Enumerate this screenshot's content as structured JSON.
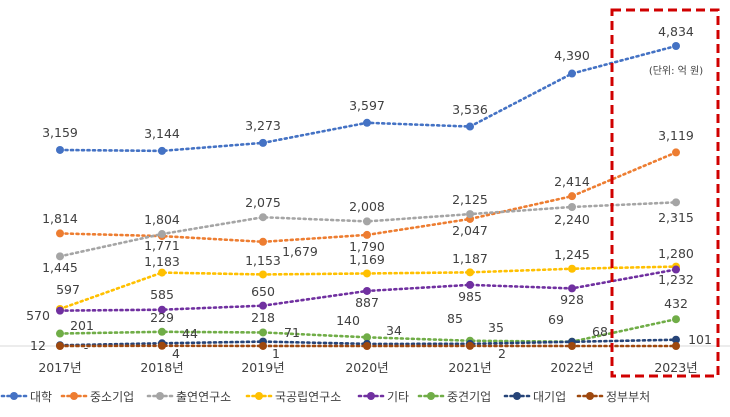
{
  "chart_data": {
    "type": "line",
    "categories": [
      "2017년",
      "2018년",
      "2019년",
      "2020년",
      "2021년",
      "2022년",
      "2023년"
    ],
    "unit_note": "(단위: 억 원)",
    "ylim": [
      0,
      5000
    ],
    "grid": false,
    "legend": "bottom",
    "highlight": "2023년",
    "series": [
      {
        "name": "대학",
        "color": "#4472c4",
        "values": [
          3159,
          3144,
          3273,
          3597,
          3536,
          4390,
          4834
        ],
        "labels": [
          "3,159",
          "3,144",
          "3,273",
          "3,597",
          "3,536",
          "4,390",
          "4,834"
        ]
      },
      {
        "name": "중소기업",
        "color": "#ed7d31",
        "values": [
          1814,
          1771,
          1679,
          1790,
          2047,
          2414,
          3119
        ],
        "labels": [
          "1,814",
          "1,771",
          "1,679",
          "1,790",
          "2,047",
          "2,414",
          "3,119"
        ]
      },
      {
        "name": "출연연구소",
        "color": "#a5a5a5",
        "values": [
          1445,
          1804,
          2075,
          2008,
          2125,
          2240,
          2315
        ],
        "labels": [
          "1,445",
          "1,804",
          "2,075",
          "2,008",
          "2,125",
          "2,240",
          "2,315"
        ]
      },
      {
        "name": "국공립연구소",
        "color": "#ffc000",
        "values": [
          597,
          1183,
          1153,
          1169,
          1187,
          1245,
          1280
        ],
        "labels": [
          "597",
          "1,183",
          "1,153",
          "1,169",
          "1,187",
          "1,245",
          "1,280"
        ]
      },
      {
        "name": "기타",
        "color": "#7030a0",
        "values": [
          570,
          585,
          650,
          887,
          985,
          928,
          1232
        ],
        "labels": [
          "570",
          "585",
          "650",
          "887",
          "985",
          "928",
          "1,232"
        ]
      },
      {
        "name": "중견기업",
        "color": "#70ad47",
        "values": [
          201,
          229,
          218,
          140,
          85,
          69,
          432
        ],
        "labels": [
          "201",
          "229",
          "218",
          "140",
          "85",
          "69",
          "432"
        ]
      },
      {
        "name": "대기업",
        "color": "#264478",
        "values": [
          12,
          44,
          71,
          34,
          35,
          68,
          101
        ],
        "labels": [
          "12",
          "44",
          "71",
          "34",
          "35",
          "68",
          "101"
        ]
      },
      {
        "name": "정부부처",
        "color": "#9e480e",
        "values": [
          0,
          4,
          1,
          0,
          2,
          0,
          0
        ],
        "labels": [
          "-",
          "4",
          "1",
          "",
          "2",
          "",
          ""
        ]
      }
    ]
  }
}
